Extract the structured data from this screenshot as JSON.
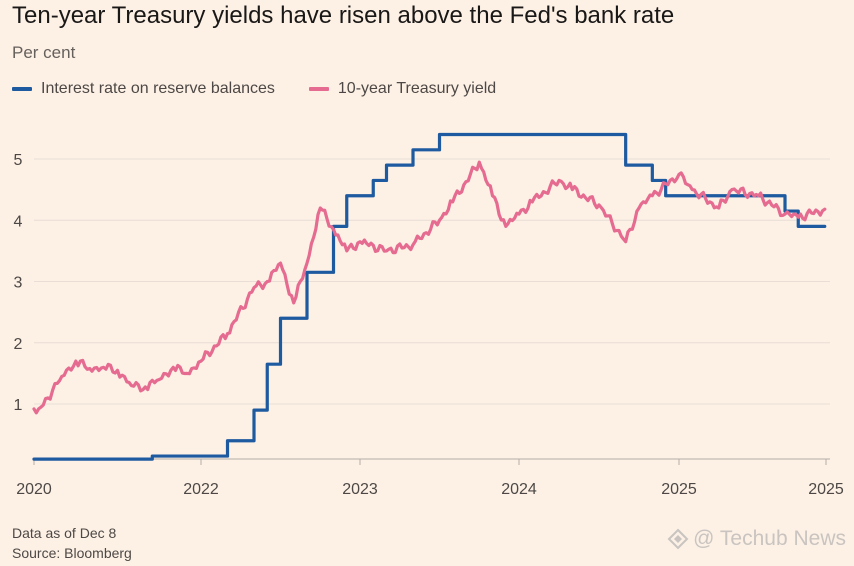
{
  "chart_data": {
    "type": "line",
    "title": "Ten-year Treasury yields have risen above the Fed's bank rate",
    "subtitle": "Per cent",
    "x_ticks": [
      "2020",
      "2022",
      "2023",
      "2024",
      "2025",
      "2025"
    ],
    "y_ticks": [
      "1",
      "2",
      "3",
      "4",
      "5"
    ],
    "ylim": [
      0,
      5.6
    ],
    "grid": true,
    "legend_position": "top-left",
    "series": [
      {
        "name": "Interest rate on reserve balances",
        "color": "#1e5aa0",
        "style": "step",
        "points": [
          [
            "2020-01",
            0.1
          ],
          [
            "2021-06",
            0.15
          ],
          [
            "2022-03",
            0.4
          ],
          [
            "2022-05",
            0.9
          ],
          [
            "2022-06",
            1.65
          ],
          [
            "2022-07",
            2.4
          ],
          [
            "2022-09",
            3.15
          ],
          [
            "2022-11",
            3.9
          ],
          [
            "2022-12",
            4.4
          ],
          [
            "2023-02",
            4.65
          ],
          [
            "2023-03",
            4.9
          ],
          [
            "2023-05",
            5.15
          ],
          [
            "2023-07",
            5.4
          ],
          [
            "2024-09",
            4.9
          ],
          [
            "2024-11",
            4.65
          ],
          [
            "2024-12",
            4.4
          ],
          [
            "2025-09",
            4.15
          ],
          [
            "2025-10",
            3.9
          ],
          [
            "2025-12",
            3.9
          ]
        ]
      },
      {
        "name": "10-year Treasury yield",
        "color": "#e56b91",
        "style": "line",
        "points": [
          [
            "2020-01",
            0.92
          ],
          [
            "2020-02",
            0.95
          ],
          [
            "2020-03",
            1.1
          ],
          [
            "2020-05",
            1.45
          ],
          [
            "2020-07",
            1.7
          ],
          [
            "2020-09",
            1.58
          ],
          [
            "2020-11",
            1.6
          ],
          [
            "2021-01",
            1.55
          ],
          [
            "2021-03",
            1.3
          ],
          [
            "2021-05",
            1.28
          ],
          [
            "2021-07",
            1.4
          ],
          [
            "2021-09",
            1.6
          ],
          [
            "2021-11",
            1.5
          ],
          [
            "2022-01",
            1.7
          ],
          [
            "2022-03",
            2.15
          ],
          [
            "2022-05",
            2.9
          ],
          [
            "2022-06",
            3.0
          ],
          [
            "2022-07",
            3.3
          ],
          [
            "2022-08",
            2.65
          ],
          [
            "2022-09",
            3.3
          ],
          [
            "2022-10",
            4.2
          ],
          [
            "2022-11",
            3.85
          ],
          [
            "2022-12",
            3.5
          ],
          [
            "2023-01",
            3.65
          ],
          [
            "2023-03",
            3.5
          ],
          [
            "2023-05",
            3.6
          ],
          [
            "2023-07",
            4.0
          ],
          [
            "2023-08",
            4.3
          ],
          [
            "2023-10",
            4.95
          ],
          [
            "2023-11",
            4.4
          ],
          [
            "2023-12",
            3.9
          ],
          [
            "2024-01",
            4.1
          ],
          [
            "2024-02",
            4.3
          ],
          [
            "2024-04",
            4.65
          ],
          [
            "2024-05",
            4.5
          ],
          [
            "2024-07",
            4.25
          ],
          [
            "2024-09",
            3.65
          ],
          [
            "2024-10",
            4.2
          ],
          [
            "2024-11",
            4.4
          ],
          [
            "2025-01",
            4.75
          ],
          [
            "2025-02",
            4.5
          ],
          [
            "2025-04",
            4.2
          ],
          [
            "2025-05",
            4.5
          ],
          [
            "2025-07",
            4.4
          ],
          [
            "2025-09",
            4.1
          ],
          [
            "2025-10",
            4.05
          ],
          [
            "2025-12",
            4.18
          ]
        ]
      }
    ]
  },
  "footer": {
    "data_note": "Data as of Dec 8",
    "source": "Source: Bloomberg"
  },
  "watermark": {
    "text": "@ Techub News"
  }
}
